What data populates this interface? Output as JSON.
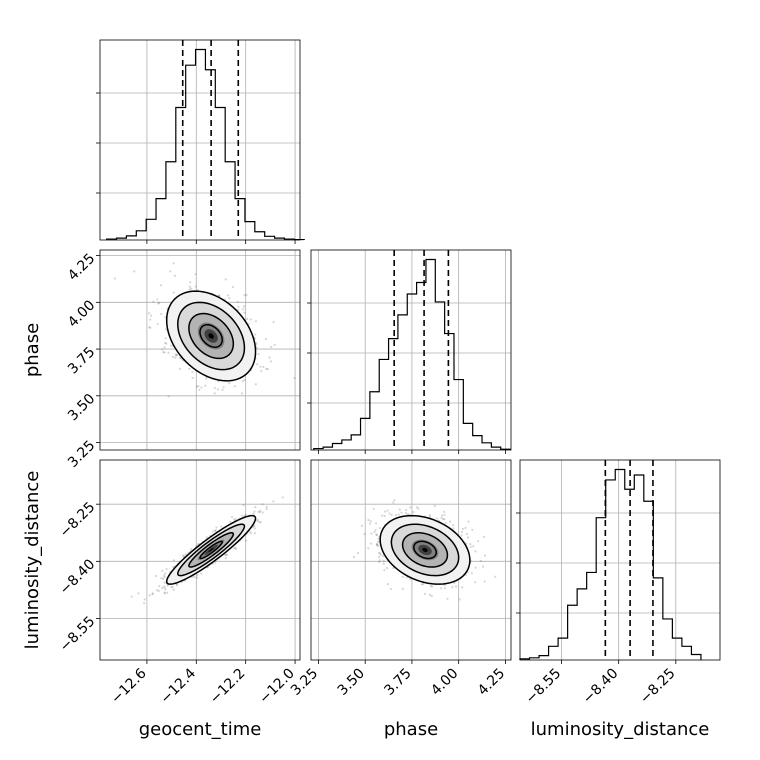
{
  "chart_data": {
    "type": "corner",
    "parameters": [
      "geocent_time",
      "phase",
      "luminosity_distance"
    ],
    "labels": {
      "geocent_time": "geocent_time",
      "phase": "phase",
      "luminosity_distance": "luminosity_distance"
    },
    "ranges": {
      "geocent_time": [
        -12.79,
        -11.98
      ],
      "phase": [
        3.21,
        4.28
      ],
      "luminosity_distance": [
        -8.659,
        -8.134
      ]
    },
    "ticks": {
      "geocent_time": [
        -12.6,
        -12.4,
        -12.2,
        -12.0
      ],
      "phase": [
        3.25,
        3.5,
        3.75,
        4.0,
        4.25
      ],
      "luminosity_distance": [
        -8.55,
        -8.4,
        -8.25
      ]
    },
    "tick_labels": {
      "geocent_time": [
        "−12.6",
        "−12.4",
        "−12.2",
        "−12.0"
      ],
      "phase": [
        "3.25",
        "3.50",
        "3.75",
        "4.00",
        "4.25"
      ],
      "luminosity_distance": [
        "−8.55",
        "−8.40",
        "−8.25"
      ]
    },
    "quantiles": {
      "geocent_time": [
        -12.455,
        -12.34,
        -12.23
      ],
      "phase": [
        3.655,
        3.815,
        3.945
      ],
      "luminosity_distance": [
        -8.435,
        -8.37,
        -8.31
      ]
    },
    "histograms": {
      "geocent_time": {
        "edges": [
          -12.763,
          -12.723,
          -12.683,
          -12.643,
          -12.603,
          -12.563,
          -12.523,
          -12.483,
          -12.443,
          -12.403,
          -12.363,
          -12.323,
          -12.283,
          -12.243,
          -12.203,
          -12.163,
          -12.123,
          -12.083,
          -12.043,
          -12.003,
          -11.963
        ],
        "counts": [
          2,
          4,
          9,
          20,
          45,
          90,
          170,
          288,
          380,
          414,
          370,
          288,
          170,
          90,
          40,
          18,
          8,
          4,
          2,
          1
        ]
      },
      "phase": {
        "edges": [
          3.225,
          3.275,
          3.325,
          3.375,
          3.425,
          3.475,
          3.525,
          3.575,
          3.625,
          3.675,
          3.725,
          3.775,
          3.825,
          3.875,
          3.925,
          3.975,
          4.025,
          4.075,
          4.125,
          4.175,
          4.225,
          4.275
        ],
        "counts": [
          2,
          4,
          9,
          14,
          21,
          44,
          81,
          126,
          155,
          188,
          217,
          233,
          265,
          206,
          162,
          98,
          37,
          20,
          10,
          4,
          1
        ]
      },
      "luminosity_distance": {
        "edges": [
          -8.659,
          -8.634,
          -8.609,
          -8.584,
          -8.559,
          -8.534,
          -8.509,
          -8.484,
          -8.459,
          -8.434,
          -8.409,
          -8.384,
          -8.359,
          -8.334,
          -8.309,
          -8.284,
          -8.259,
          -8.234,
          -8.209,
          -8.184
        ],
        "counts": [
          2,
          4,
          8,
          25,
          40,
          100,
          130,
          160,
          260,
          329,
          348,
          312,
          338,
          290,
          150,
          75,
          40,
          25,
          10
        ]
      }
    },
    "pairs": [
      {
        "x": "geocent_time",
        "y": "phase",
        "mean": [
          -12.34,
          3.82
        ],
        "sd": [
          0.09,
          0.12
        ],
        "rho": -0.35
      },
      {
        "x": "geocent_time",
        "y": "luminosity_distance",
        "mean": [
          -12.34,
          -8.37
        ],
        "sd": [
          0.09,
          0.045
        ],
        "rho": 0.92
      },
      {
        "x": "phase",
        "y": "luminosity_distance",
        "mean": [
          3.82,
          -8.37
        ],
        "sd": [
          0.12,
          0.045
        ],
        "rho": -0.3
      }
    ],
    "contour_levels_sigma": [
      0.5,
      1.0,
      1.5,
      2.0
    ],
    "grid": true
  }
}
